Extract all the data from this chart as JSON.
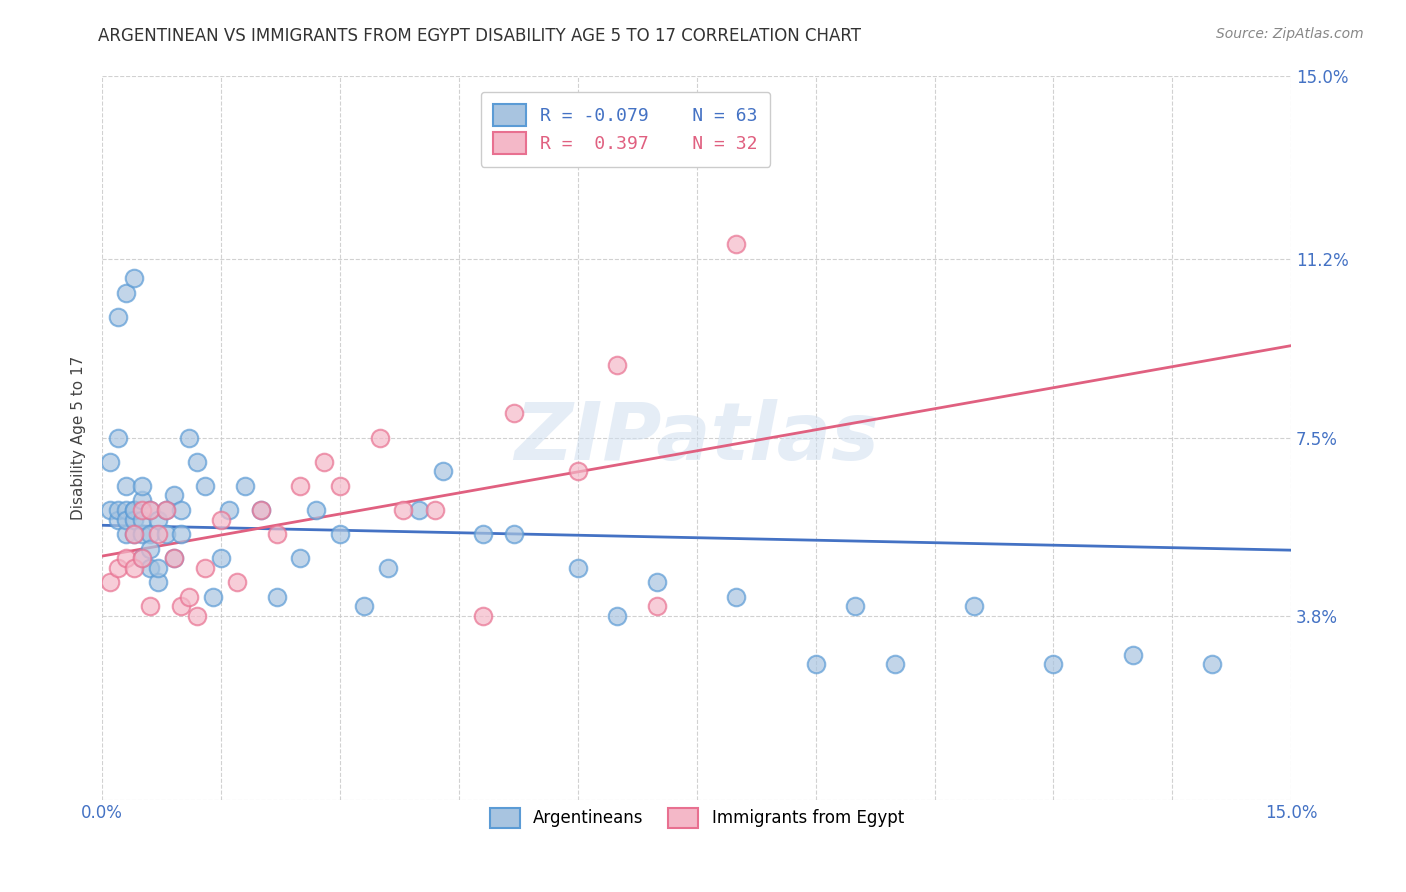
{
  "title": "ARGENTINEAN VS IMMIGRANTS FROM EGYPT DISABILITY AGE 5 TO 17 CORRELATION CHART",
  "source": "Source: ZipAtlas.com",
  "ylabel": "Disability Age 5 to 17",
  "xlim": [
    0.0,
    0.15
  ],
  "ylim": [
    0.0,
    0.15
  ],
  "watermark": "ZIPatlas",
  "blue_R": -0.079,
  "blue_N": 63,
  "pink_R": 0.397,
  "pink_N": 32,
  "blue_scatter_color": "#a8c4e0",
  "blue_edge_color": "#5b9bd5",
  "pink_scatter_color": "#f4b8c8",
  "pink_edge_color": "#e87090",
  "blue_line_color": "#4472c4",
  "pink_line_color": "#e06080",
  "legend_blue_label": "Argentineans",
  "legend_pink_label": "Immigrants from Egypt",
  "blue_x": [
    0.001,
    0.001,
    0.002,
    0.002,
    0.002,
    0.003,
    0.003,
    0.003,
    0.003,
    0.004,
    0.004,
    0.004,
    0.004,
    0.005,
    0.005,
    0.005,
    0.005,
    0.005,
    0.006,
    0.006,
    0.006,
    0.006,
    0.007,
    0.007,
    0.007,
    0.008,
    0.008,
    0.009,
    0.009,
    0.01,
    0.01,
    0.011,
    0.012,
    0.013,
    0.014,
    0.015,
    0.016,
    0.018,
    0.02,
    0.022,
    0.025,
    0.027,
    0.03,
    0.033,
    0.036,
    0.04,
    0.043,
    0.048,
    0.052,
    0.06,
    0.065,
    0.07,
    0.08,
    0.09,
    0.095,
    0.1,
    0.11,
    0.12,
    0.13,
    0.14,
    0.002,
    0.003,
    0.004
  ],
  "blue_y": [
    0.06,
    0.07,
    0.058,
    0.06,
    0.075,
    0.055,
    0.06,
    0.065,
    0.058,
    0.06,
    0.055,
    0.058,
    0.06,
    0.062,
    0.055,
    0.058,
    0.05,
    0.065,
    0.06,
    0.055,
    0.048,
    0.052,
    0.058,
    0.045,
    0.048,
    0.06,
    0.055,
    0.063,
    0.05,
    0.055,
    0.06,
    0.075,
    0.07,
    0.065,
    0.042,
    0.05,
    0.06,
    0.065,
    0.06,
    0.042,
    0.05,
    0.06,
    0.055,
    0.04,
    0.048,
    0.06,
    0.068,
    0.055,
    0.055,
    0.048,
    0.038,
    0.045,
    0.042,
    0.028,
    0.04,
    0.028,
    0.04,
    0.028,
    0.03,
    0.028,
    0.1,
    0.105,
    0.108
  ],
  "pink_x": [
    0.001,
    0.002,
    0.003,
    0.004,
    0.004,
    0.005,
    0.005,
    0.006,
    0.006,
    0.007,
    0.008,
    0.009,
    0.01,
    0.011,
    0.012,
    0.013,
    0.015,
    0.017,
    0.02,
    0.022,
    0.025,
    0.028,
    0.03,
    0.035,
    0.038,
    0.042,
    0.048,
    0.052,
    0.06,
    0.065,
    0.07,
    0.08
  ],
  "pink_y": [
    0.045,
    0.048,
    0.05,
    0.048,
    0.055,
    0.05,
    0.06,
    0.04,
    0.06,
    0.055,
    0.06,
    0.05,
    0.04,
    0.042,
    0.038,
    0.048,
    0.058,
    0.045,
    0.06,
    0.055,
    0.065,
    0.07,
    0.065,
    0.075,
    0.06,
    0.06,
    0.038,
    0.08,
    0.068,
    0.09,
    0.04,
    0.115
  ]
}
